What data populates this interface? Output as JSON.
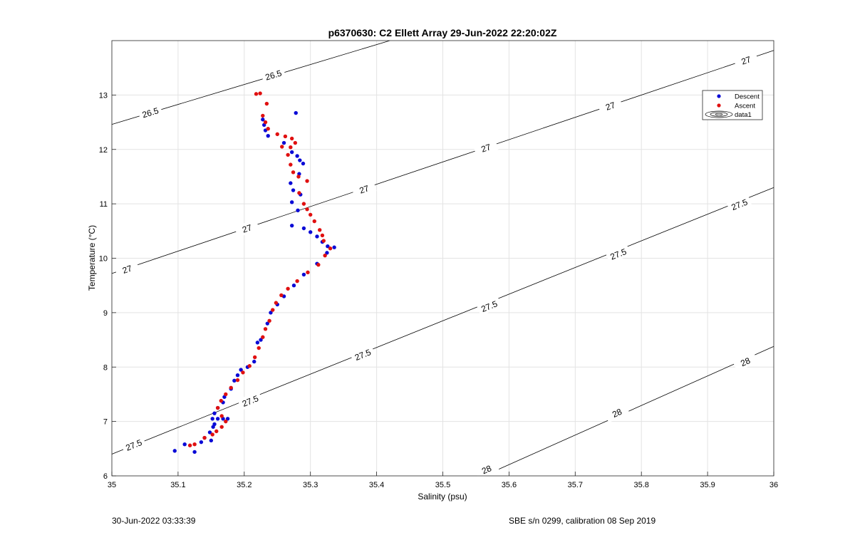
{
  "chart_data": {
    "type": "scatter",
    "title": "p6370630: C2 Ellett Array 29-Jun-2022 22:20:02Z",
    "xlabel": "Salinity (psu)",
    "ylabel": "Temperature (°C)",
    "xlim": [
      35,
      36
    ],
    "ylim": [
      6,
      14
    ],
    "xticks": [
      "35",
      "35.1",
      "35.2",
      "35.3",
      "35.4",
      "35.5",
      "35.6",
      "35.7",
      "35.8",
      "35.9",
      "36"
    ],
    "yticks": [
      "6",
      "7",
      "8",
      "9",
      "10",
      "11",
      "12",
      "13"
    ],
    "grid": true,
    "legend": [
      "Descent",
      "Ascent",
      "data1"
    ],
    "legend_position": "top-right",
    "colors": {
      "descent": "#0a0ad6",
      "ascent": "#e01010",
      "contour": "#000000",
      "grid": "#e3e3e3"
    },
    "density_contours": [
      {
        "label": "26.5",
        "line": [
          [
            35.0,
            12.46
          ],
          [
            35.42,
            14.0
          ]
        ],
        "label_positions": [
          [
            35.058,
            12.68
          ],
          [
            35.244,
            13.37
          ]
        ]
      },
      {
        "label": "27",
        "line": [
          [
            35.0,
            9.72
          ],
          [
            36.0,
            13.82
          ]
        ],
        "label_positions": [
          [
            35.023,
            9.8
          ],
          [
            35.204,
            10.55
          ],
          [
            35.381,
            11.27
          ],
          [
            35.565,
            12.03
          ],
          [
            35.753,
            12.8
          ],
          [
            35.958,
            13.64
          ]
        ]
      },
      {
        "label": "27.5",
        "line": [
          [
            35.0,
            6.4
          ],
          [
            36.0,
            11.3
          ]
        ],
        "label_positions": [
          [
            35.033,
            6.57
          ],
          [
            35.209,
            7.38
          ],
          [
            35.379,
            8.23
          ],
          [
            35.57,
            9.12
          ],
          [
            35.765,
            10.08
          ],
          [
            35.948,
            10.99
          ]
        ]
      },
      {
        "label": "28",
        "line": [
          [
            35.562,
            6.0
          ],
          [
            36.0,
            8.38
          ]
        ],
        "label_positions": [
          [
            35.566,
            6.12
          ],
          [
            35.763,
            7.16
          ],
          [
            35.957,
            8.1
          ]
        ]
      }
    ],
    "series": [
      {
        "name": "Descent",
        "points": [
          [
            35.278,
            12.67
          ],
          [
            35.228,
            12.55
          ],
          [
            35.23,
            12.45
          ],
          [
            35.232,
            12.35
          ],
          [
            35.236,
            12.25
          ],
          [
            35.26,
            12.12
          ],
          [
            35.272,
            11.95
          ],
          [
            35.28,
            11.88
          ],
          [
            35.284,
            11.8
          ],
          [
            35.289,
            11.74
          ],
          [
            35.283,
            11.55
          ],
          [
            35.27,
            11.38
          ],
          [
            35.274,
            11.25
          ],
          [
            35.285,
            11.17
          ],
          [
            35.272,
            11.03
          ],
          [
            35.281,
            10.88
          ],
          [
            35.29,
            10.55
          ],
          [
            35.3,
            10.48
          ],
          [
            35.31,
            10.4
          ],
          [
            35.318,
            10.3
          ],
          [
            35.326,
            10.22
          ],
          [
            35.336,
            10.2
          ],
          [
            35.272,
            10.6
          ],
          [
            35.325,
            10.1
          ],
          [
            35.31,
            9.9
          ],
          [
            35.29,
            9.7
          ],
          [
            35.275,
            9.5
          ],
          [
            35.26,
            9.3
          ],
          [
            35.25,
            9.15
          ],
          [
            35.24,
            9.0
          ],
          [
            35.235,
            8.8
          ],
          [
            35.225,
            8.5
          ],
          [
            35.22,
            8.45
          ],
          [
            35.215,
            8.1
          ],
          [
            35.205,
            8.0
          ],
          [
            35.195,
            7.95
          ],
          [
            35.19,
            7.85
          ],
          [
            35.185,
            7.75
          ],
          [
            35.18,
            7.6
          ],
          [
            35.17,
            7.45
          ],
          [
            35.168,
            7.35
          ],
          [
            35.16,
            7.25
          ],
          [
            35.155,
            7.15
          ],
          [
            35.152,
            7.05
          ],
          [
            35.155,
            6.95
          ],
          [
            35.16,
            7.05
          ],
          [
            35.168,
            7.05
          ],
          [
            35.175,
            7.05
          ],
          [
            35.153,
            6.9
          ],
          [
            35.148,
            6.8
          ],
          [
            35.14,
            6.7
          ],
          [
            35.15,
            6.65
          ],
          [
            35.135,
            6.62
          ],
          [
            35.11,
            6.58
          ],
          [
            35.095,
            6.46
          ],
          [
            35.125,
            6.44
          ]
        ]
      },
      {
        "name": "Ascent",
        "points": [
          [
            35.218,
            13.02
          ],
          [
            35.224,
            13.03
          ],
          [
            35.234,
            12.84
          ],
          [
            35.228,
            12.62
          ],
          [
            35.232,
            12.5
          ],
          [
            35.236,
            12.38
          ],
          [
            35.25,
            12.28
          ],
          [
            35.262,
            12.24
          ],
          [
            35.272,
            12.2
          ],
          [
            35.277,
            12.12
          ],
          [
            35.27,
            12.04
          ],
          [
            35.257,
            12.05
          ],
          [
            35.266,
            11.9
          ],
          [
            35.27,
            11.72
          ],
          [
            35.274,
            11.58
          ],
          [
            35.282,
            11.5
          ],
          [
            35.295,
            11.42
          ],
          [
            35.283,
            11.2
          ],
          [
            35.29,
            11.0
          ],
          [
            35.295,
            10.9
          ],
          [
            35.3,
            10.8
          ],
          [
            35.306,
            10.68
          ],
          [
            35.314,
            10.52
          ],
          [
            35.318,
            10.42
          ],
          [
            35.32,
            10.32
          ],
          [
            35.33,
            10.18
          ],
          [
            35.322,
            10.05
          ],
          [
            35.312,
            9.88
          ],
          [
            35.296,
            9.74
          ],
          [
            35.28,
            9.58
          ],
          [
            35.266,
            9.44
          ],
          [
            35.256,
            9.32
          ],
          [
            35.248,
            9.18
          ],
          [
            35.243,
            9.05
          ],
          [
            35.238,
            8.85
          ],
          [
            35.232,
            8.7
          ],
          [
            35.228,
            8.55
          ],
          [
            35.222,
            8.35
          ],
          [
            35.216,
            8.18
          ],
          [
            35.208,
            8.02
          ],
          [
            35.198,
            7.9
          ],
          [
            35.19,
            7.76
          ],
          [
            35.18,
            7.62
          ],
          [
            35.172,
            7.5
          ],
          [
            35.165,
            7.38
          ],
          [
            35.16,
            7.25
          ],
          [
            35.166,
            7.1
          ],
          [
            35.172,
            7.0
          ],
          [
            35.166,
            6.9
          ],
          [
            35.158,
            6.82
          ],
          [
            35.152,
            6.76
          ],
          [
            35.14,
            6.7
          ],
          [
            35.125,
            6.58
          ],
          [
            35.118,
            6.56
          ]
        ]
      }
    ]
  },
  "footer": {
    "timestamp": "30-Jun-2022 03:33:39",
    "instrument": "SBE s/n 0299, calibration 08 Sep 2019"
  }
}
